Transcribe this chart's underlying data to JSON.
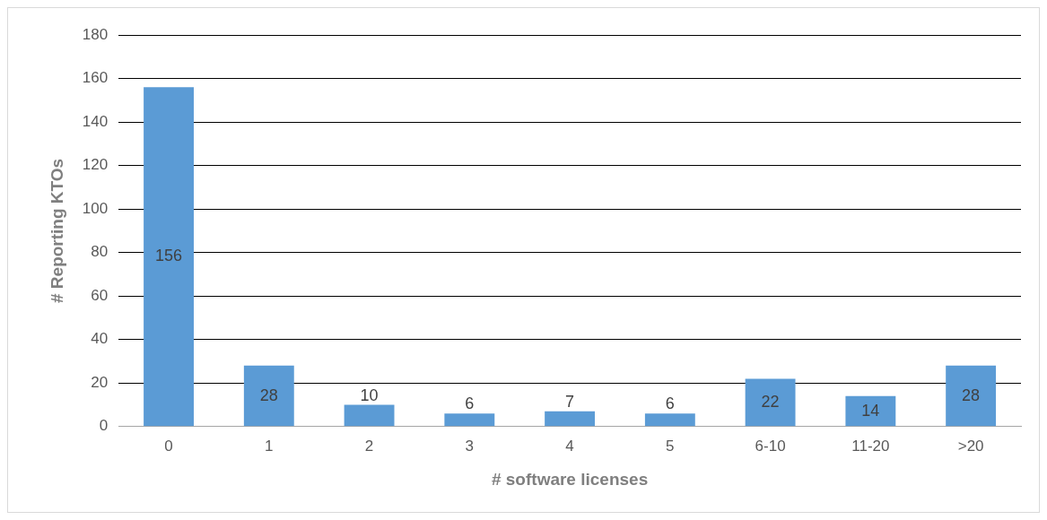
{
  "chart_data": {
    "type": "bar",
    "xlabel": "# software licenses",
    "ylabel": "# Reporting KTOs",
    "categories": [
      "0",
      "1",
      "2",
      "3",
      "4",
      "5",
      "6-10",
      "11-20",
      ">20"
    ],
    "values": [
      156,
      28,
      10,
      6,
      7,
      6,
      22,
      14,
      28
    ],
    "color": "#5b9bd5",
    "ylim": [
      0,
      180
    ],
    "yticks": [
      0,
      20,
      40,
      60,
      80,
      100,
      120,
      140,
      160,
      180
    ],
    "grid": "y",
    "data_labels": true,
    "legend": false
  }
}
